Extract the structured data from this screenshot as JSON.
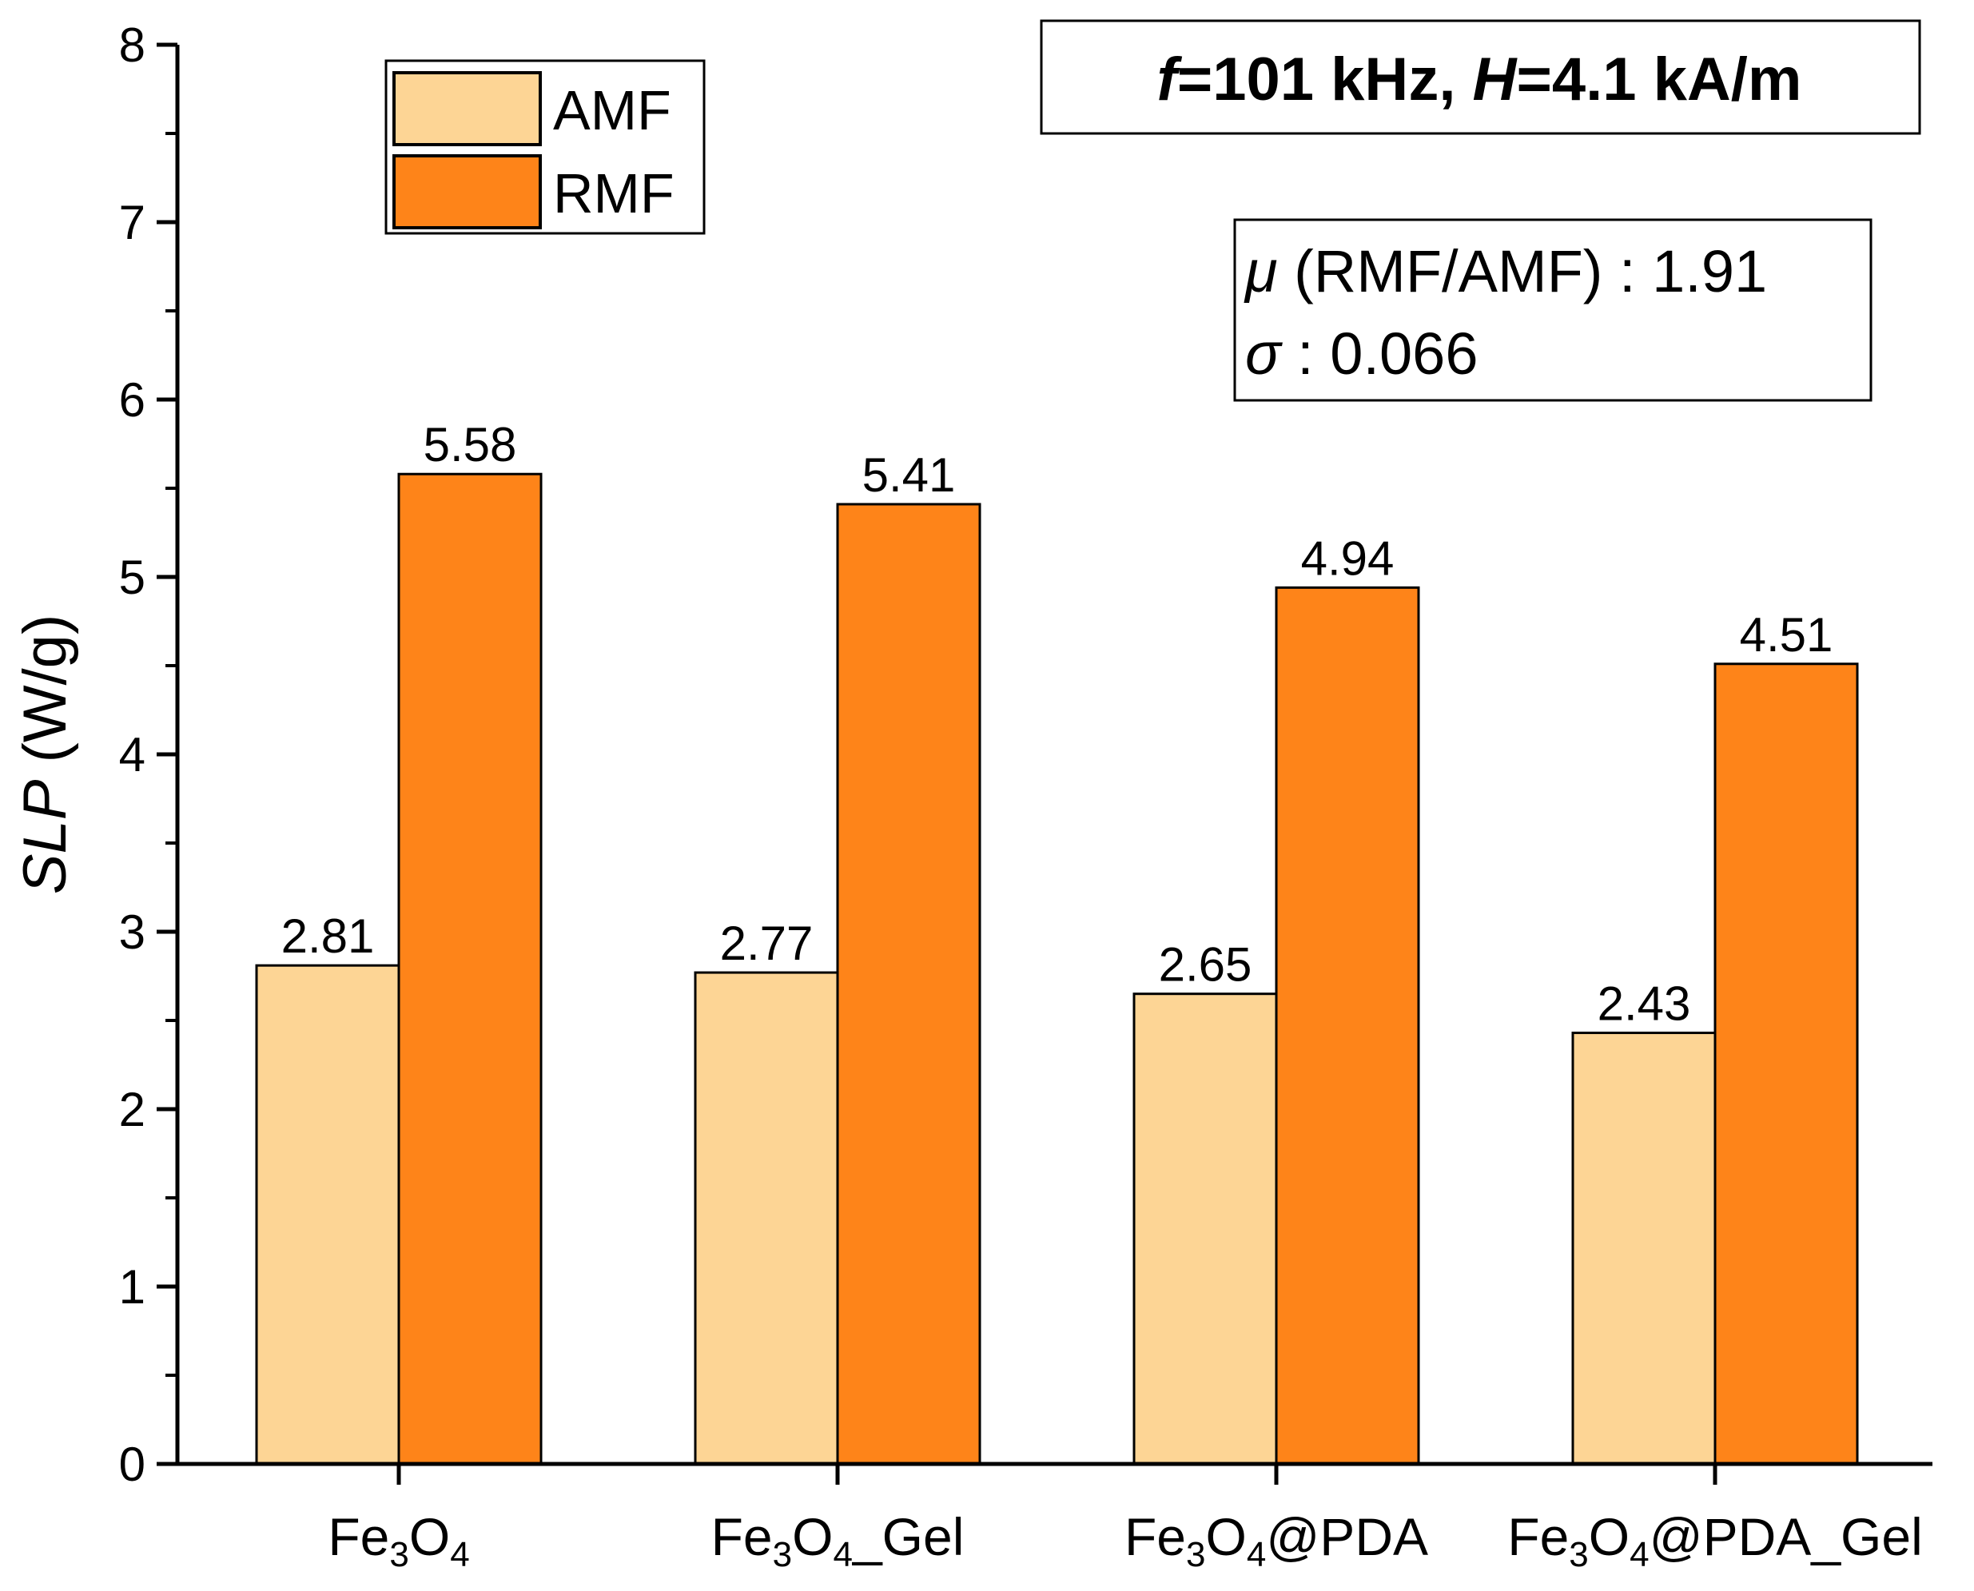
{
  "chart_data": {
    "type": "bar",
    "categories": [
      {
        "base": "Fe",
        "sub1": "3",
        "mid": "O",
        "sub2": "4",
        "suffix": ""
      },
      {
        "base": "Fe",
        "sub1": "3",
        "mid": "O",
        "sub2": "4",
        "suffix": "_Gel"
      },
      {
        "base": "Fe",
        "sub1": "3",
        "mid": "O",
        "sub2": "4",
        "suffix": "@PDA"
      },
      {
        "base": "Fe",
        "sub1": "3",
        "mid": "O",
        "sub2": "4",
        "suffix": "@PDA_Gel"
      }
    ],
    "series": [
      {
        "name": "AMF",
        "color": "#fdd595",
        "values": [
          2.81,
          2.77,
          2.65,
          2.43
        ],
        "labels": [
          "2.81",
          "2.77",
          "2.65",
          "2.43"
        ]
      },
      {
        "name": "RMF",
        "color": "#fe8419",
        "values": [
          5.58,
          5.41,
          4.94,
          4.51
        ],
        "labels": [
          "5.58",
          "5.41",
          "4.94",
          "4.51"
        ]
      }
    ],
    "ylabel": {
      "italic": "SLP",
      "rest": " (W/g)"
    },
    "xlabel": "",
    "ylim": [
      0,
      8
    ],
    "yticks": [
      "0",
      "1",
      "2",
      "3",
      "4",
      "5",
      "6",
      "7",
      "8"
    ],
    "legend": "top-left",
    "grid": false,
    "condition_box": {
      "f_sym": "f",
      "f_val": "=101 kHz, ",
      "h_sym": "H",
      "h_val": "=4.1 kA/m"
    },
    "stats_box": {
      "mu_sym": "μ",
      "mu_text": " (RMF/AMF) : 1.91",
      "sigma_sym": "σ",
      "sigma_text": " : 0.066"
    }
  }
}
